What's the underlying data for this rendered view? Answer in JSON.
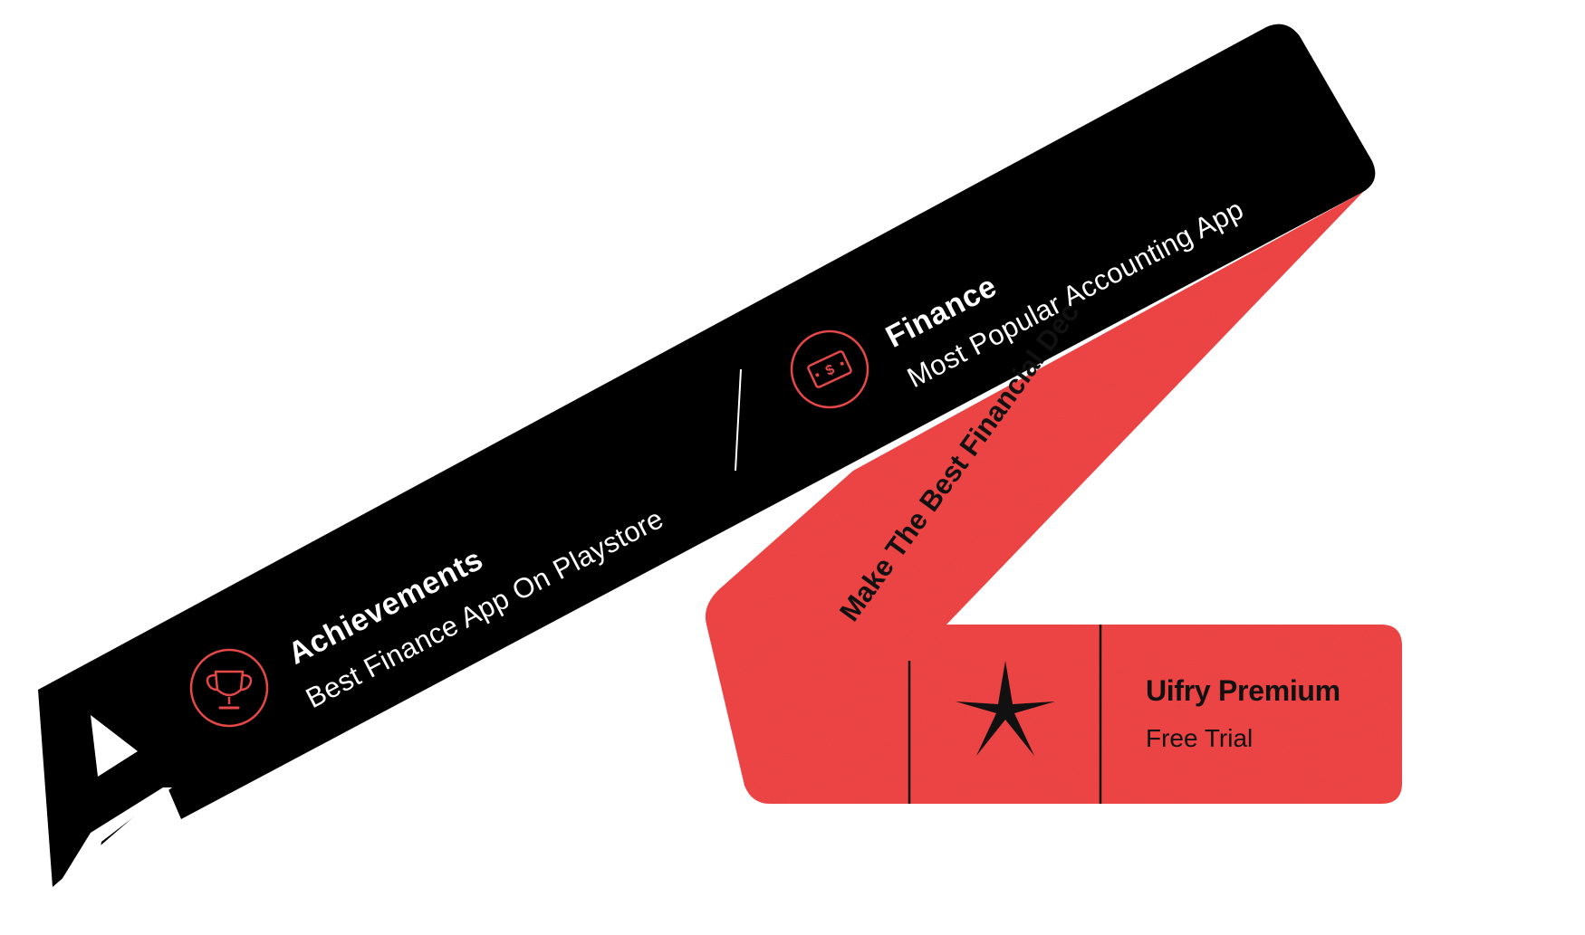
{
  "items": [
    {
      "title": "Achievements",
      "subtitle": "Best Finance App On Playstore",
      "icon": "trophy-icon"
    },
    {
      "title": "Finance",
      "subtitle": "Most Popular Accounting App",
      "icon": "money-icon"
    }
  ],
  "ribbon": {
    "text": "Make The Best Financial Dec"
  },
  "ticket": {
    "title": "Uifry Premium",
    "subtitle": "Free Trial",
    "icon": "star-icon"
  },
  "colors": {
    "black_band": "#000000",
    "red": "#f04545",
    "icon_stroke": "#e64848"
  }
}
